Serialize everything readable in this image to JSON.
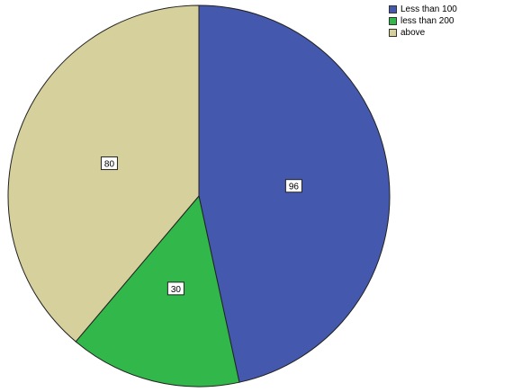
{
  "chart_data": {
    "type": "pie",
    "categories": [
      "Less than 100",
      "less than 200",
      "above"
    ],
    "values": [
      96,
      30,
      80
    ],
    "colors": [
      "#4458ad",
      "#31b74a",
      "#d6d09c"
    ],
    "legend_position": "top-right",
    "data_labels_shown": true
  }
}
